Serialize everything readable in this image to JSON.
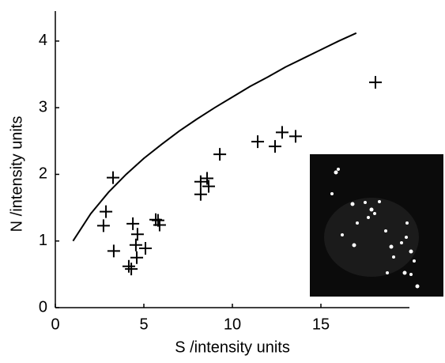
{
  "chart_data": {
    "type": "scatter",
    "xlabel": "S /intensity units",
    "ylabel": "N /intensity units",
    "xlim": [
      0,
      20
    ],
    "ylim": [
      0,
      4.45
    ],
    "xticks": [
      0,
      5,
      10,
      15
    ],
    "yticks": [
      0,
      1,
      2,
      3,
      4
    ],
    "series": [
      {
        "type": "line",
        "color": "#000000",
        "x": [
          1,
          2,
          3,
          4,
          5,
          6,
          7,
          8,
          9,
          10,
          11,
          12,
          13,
          14,
          15,
          16,
          17
        ],
        "values": [
          1,
          1.41,
          1.73,
          2,
          2.24,
          2.45,
          2.65,
          2.83,
          3,
          3.16,
          3.32,
          3.46,
          3.61,
          3.74,
          3.87,
          4,
          4.12
        ]
      },
      {
        "type": "scatter",
        "color": "#000000",
        "x": [
          3.26,
          2.86,
          2.72,
          3.3,
          4.38,
          4.64,
          4.55,
          4.6,
          4.15,
          4.29,
          5.09,
          5.67,
          5.89,
          5.8,
          8.21,
          8.21,
          8.57,
          8.66,
          9.29,
          11.43,
          12.41,
          12.81,
          13.57,
          18.08
        ],
        "values": [
          1.95,
          1.44,
          1.23,
          0.85,
          1.26,
          1.1,
          0.94,
          0.75,
          0.62,
          0.58,
          0.89,
          1.32,
          1.24,
          1.31,
          1.7,
          1.89,
          1.94,
          1.82,
          2.3,
          2.49,
          2.42,
          2.63,
          2.57,
          3.38
        ]
      }
    ]
  }
}
